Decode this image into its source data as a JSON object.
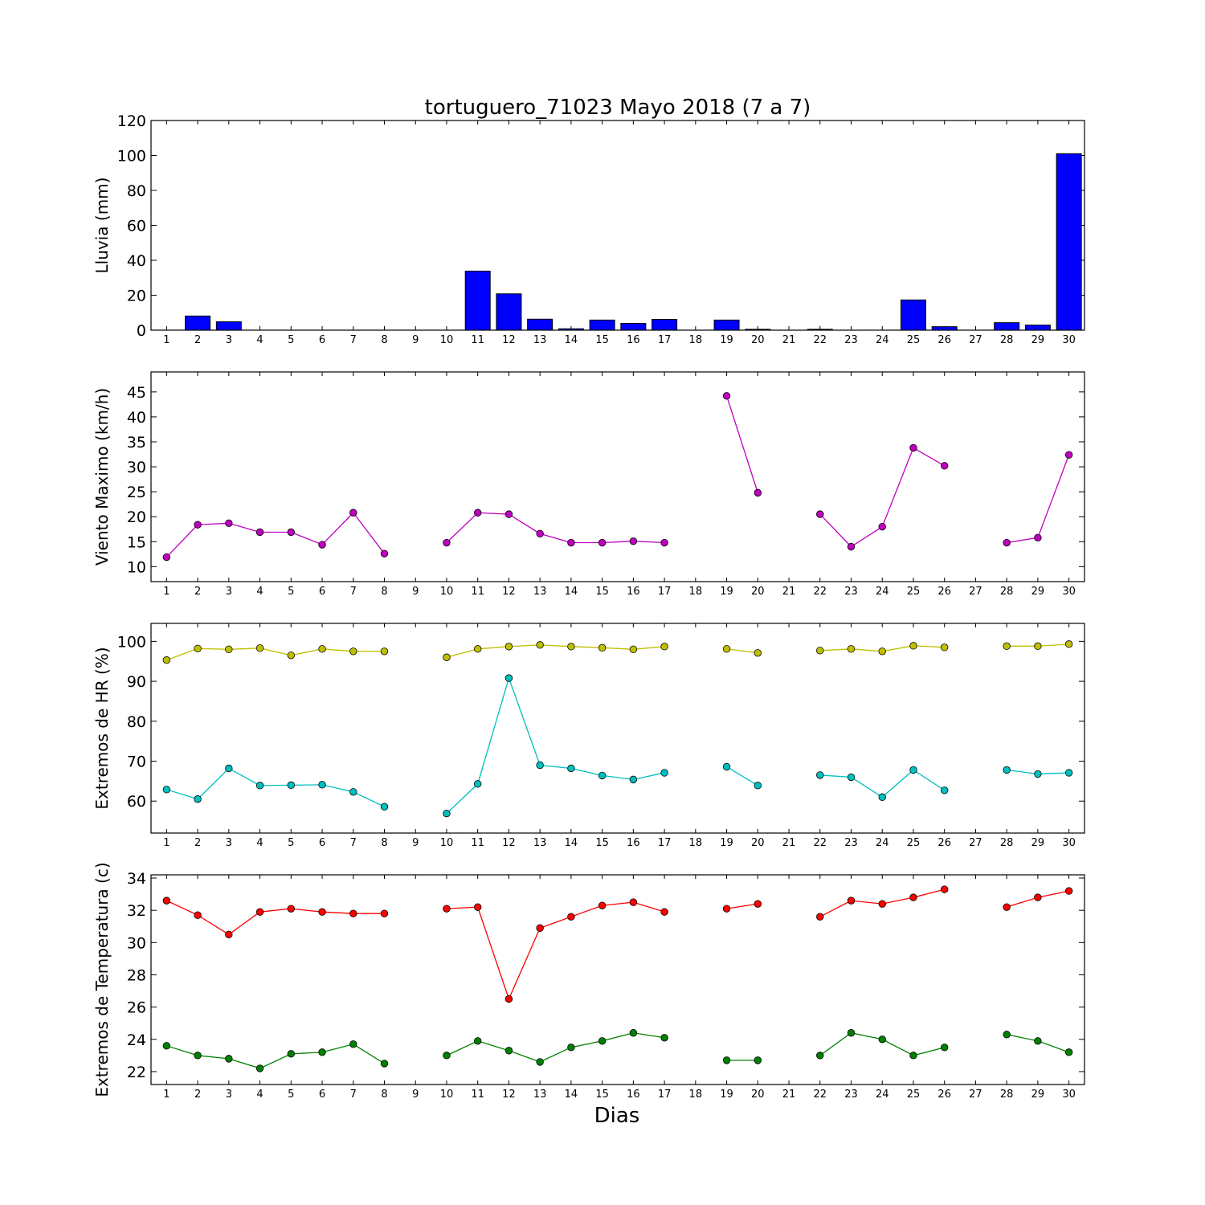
{
  "title": "tortuguero_71023 Mayo 2018  (7 a 7)",
  "xlabel": "Dias",
  "colors": {
    "rain": "#0000ff",
    "wind": "#bf00bf",
    "hr_max": "#bfbf00",
    "hr_min": "#00bfbf",
    "temp_max": "#ff0000",
    "temp_min": "#008000"
  },
  "chart_data": [
    {
      "type": "bar",
      "ylabel": "Lluvia (mm)",
      "ylim": [
        0,
        120
      ],
      "yticks": [
        0,
        20,
        40,
        60,
        80,
        100,
        120
      ],
      "xlim": [
        0.5,
        30.5
      ],
      "categories": [
        1,
        2,
        3,
        4,
        5,
        6,
        7,
        8,
        9,
        10,
        11,
        12,
        13,
        14,
        15,
        16,
        17,
        18,
        19,
        20,
        21,
        22,
        23,
        24,
        25,
        26,
        27,
        28,
        29,
        30
      ],
      "series": [
        {
          "values": [
            0,
            8.1,
            4.8,
            0,
            0,
            0,
            0,
            0,
            0,
            0,
            33.8,
            20.8,
            6.3,
            0.8,
            5.8,
            3.9,
            6.2,
            0,
            5.8,
            0.5,
            0,
            0.5,
            0,
            0,
            17.3,
            2.0,
            0,
            4.3,
            2.9,
            101.0
          ]
        }
      ],
      "grid": false
    },
    {
      "type": "line",
      "ylabel": "Viento Maximo (km/h)",
      "ylim": [
        7,
        49
      ],
      "yticks": [
        10,
        15,
        20,
        25,
        30,
        35,
        40,
        45
      ],
      "xlim": [
        0.5,
        30.5
      ],
      "x": [
        1,
        2,
        3,
        4,
        5,
        6,
        7,
        8,
        9,
        10,
        11,
        12,
        13,
        14,
        15,
        16,
        17,
        18,
        19,
        20,
        21,
        22,
        23,
        24,
        25,
        26,
        27,
        28,
        29,
        30
      ],
      "series": [
        {
          "values": [
            11.9,
            18.4,
            18.7,
            16.9,
            16.9,
            14.4,
            20.8,
            12.6,
            null,
            14.8,
            20.8,
            20.5,
            16.6,
            14.8,
            14.8,
            15.1,
            14.8,
            null,
            44.2,
            24.8,
            null,
            20.5,
            14.0,
            18.0,
            33.8,
            30.2,
            null,
            14.8,
            15.8,
            32.4
          ]
        }
      ],
      "grid": false
    },
    {
      "type": "line",
      "ylabel": "Extremos de HR (%)",
      "ylim": [
        52,
        104.5
      ],
      "yticks": [
        60,
        70,
        80,
        90,
        100
      ],
      "xlim": [
        0.5,
        30.5
      ],
      "x": [
        1,
        2,
        3,
        4,
        5,
        6,
        7,
        8,
        9,
        10,
        11,
        12,
        13,
        14,
        15,
        16,
        17,
        18,
        19,
        20,
        21,
        22,
        23,
        24,
        25,
        26,
        27,
        28,
        29,
        30
      ],
      "series": [
        {
          "values": [
            95.3,
            98.2,
            98.0,
            98.3,
            96.5,
            98.1,
            97.5,
            97.5,
            null,
            96.0,
            98.1,
            98.7,
            99.1,
            98.7,
            98.4,
            98.0,
            98.7,
            null,
            98.1,
            97.1,
            null,
            97.7,
            98.1,
            97.5,
            98.9,
            98.5,
            null,
            98.8,
            98.8,
            99.3
          ]
        },
        {
          "values": [
            62.9,
            60.5,
            68.2,
            63.9,
            64.0,
            64.1,
            62.3,
            58.6,
            null,
            56.9,
            64.3,
            90.8,
            69.0,
            68.2,
            66.4,
            65.4,
            67.1,
            null,
            68.6,
            63.9,
            null,
            66.5,
            66.0,
            61.0,
            67.8,
            62.7,
            null,
            67.8,
            66.8,
            67.1
          ]
        }
      ],
      "grid": false
    },
    {
      "type": "line",
      "ylabel": "Extremos de Temperatura (c)",
      "ylim": [
        21.2,
        34.2
      ],
      "yticks": [
        22,
        24,
        26,
        28,
        30,
        32,
        34
      ],
      "xlim": [
        0.5,
        30.5
      ],
      "x": [
        1,
        2,
        3,
        4,
        5,
        6,
        7,
        8,
        9,
        10,
        11,
        12,
        13,
        14,
        15,
        16,
        17,
        18,
        19,
        20,
        21,
        22,
        23,
        24,
        25,
        26,
        27,
        28,
        29,
        30
      ],
      "series": [
        {
          "values": [
            32.6,
            31.7,
            30.5,
            31.9,
            32.1,
            31.9,
            31.8,
            31.8,
            null,
            32.1,
            32.2,
            26.5,
            30.9,
            31.6,
            32.3,
            32.5,
            31.9,
            null,
            32.1,
            32.4,
            null,
            31.6,
            32.6,
            32.4,
            32.8,
            33.3,
            null,
            32.2,
            32.8,
            33.2
          ]
        },
        {
          "values": [
            23.6,
            23.0,
            22.8,
            22.2,
            23.1,
            23.2,
            23.7,
            22.5,
            null,
            23.0,
            23.9,
            23.3,
            22.6,
            23.5,
            23.9,
            24.4,
            24.1,
            null,
            22.7,
            22.7,
            null,
            23.0,
            24.4,
            24.0,
            23.0,
            23.5,
            null,
            24.3,
            23.9,
            23.2
          ]
        }
      ],
      "grid": false
    }
  ]
}
